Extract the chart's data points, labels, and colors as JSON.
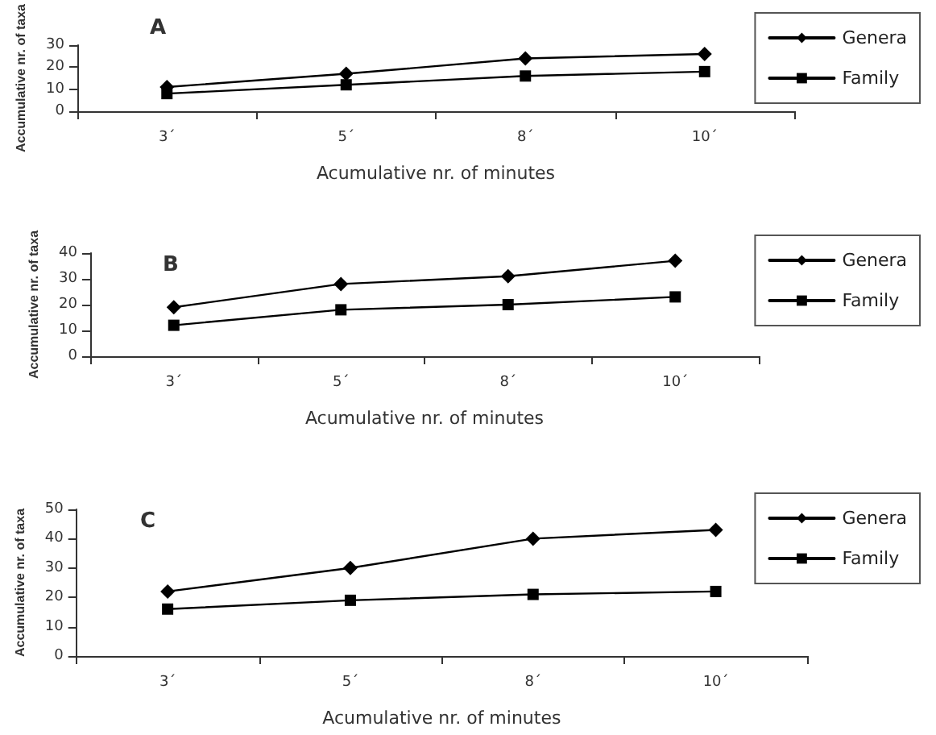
{
  "chart_data": [
    {
      "type": "line",
      "title": "A",
      "xlabel": "Acumulative nr. of minutes",
      "ylabel": "Accumulative nr. of taxa",
      "categories": [
        "3´",
        "5´",
        "8´",
        "10´"
      ],
      "series": [
        {
          "name": "Genera",
          "color": "#000000",
          "marker": "diamond",
          "values": [
            11,
            17,
            24,
            26
          ]
        },
        {
          "name": "Family",
          "color": "#000000",
          "marker": "square",
          "values": [
            8,
            12,
            16,
            18
          ]
        }
      ],
      "ylim": [
        0,
        30
      ],
      "yticks": [
        0,
        10,
        20,
        30
      ],
      "grid": false,
      "legend": "right",
      "line_style": "solid"
    },
    {
      "type": "line",
      "title": "B",
      "xlabel": "Acumulative nr. of minutes",
      "ylabel": "Accumulative nr. of taxa",
      "categories": [
        "3´",
        "5´",
        "8´",
        "10´"
      ],
      "series": [
        {
          "name": "Genera",
          "color": "#000000",
          "marker": "diamond",
          "values": [
            19,
            28,
            31,
            37
          ]
        },
        {
          "name": "Family",
          "color": "#000000",
          "marker": "square",
          "values": [
            12,
            18,
            20,
            23
          ]
        }
      ],
      "ylim": [
        0,
        40
      ],
      "yticks": [
        0,
        10,
        20,
        30,
        40
      ],
      "grid": false,
      "legend": "right",
      "line_style": "solid"
    },
    {
      "type": "line",
      "title": "C",
      "xlabel": "Acumulative nr. of minutes",
      "ylabel": "Accumulative nr. of taxa",
      "categories": [
        "3´",
        "5´",
        "8´",
        "10´"
      ],
      "series": [
        {
          "name": "Genera",
          "color": "#000000",
          "marker": "diamond",
          "values": [
            22,
            30,
            40,
            43
          ]
        },
        {
          "name": "Family",
          "color": "#000000",
          "marker": "square",
          "values": [
            16,
            19,
            21,
            22
          ]
        }
      ],
      "ylim": [
        0,
        50
      ],
      "yticks": [
        0,
        10,
        20,
        30,
        40,
        50
      ],
      "grid": false,
      "legend": "right",
      "line_style": "solid"
    }
  ]
}
